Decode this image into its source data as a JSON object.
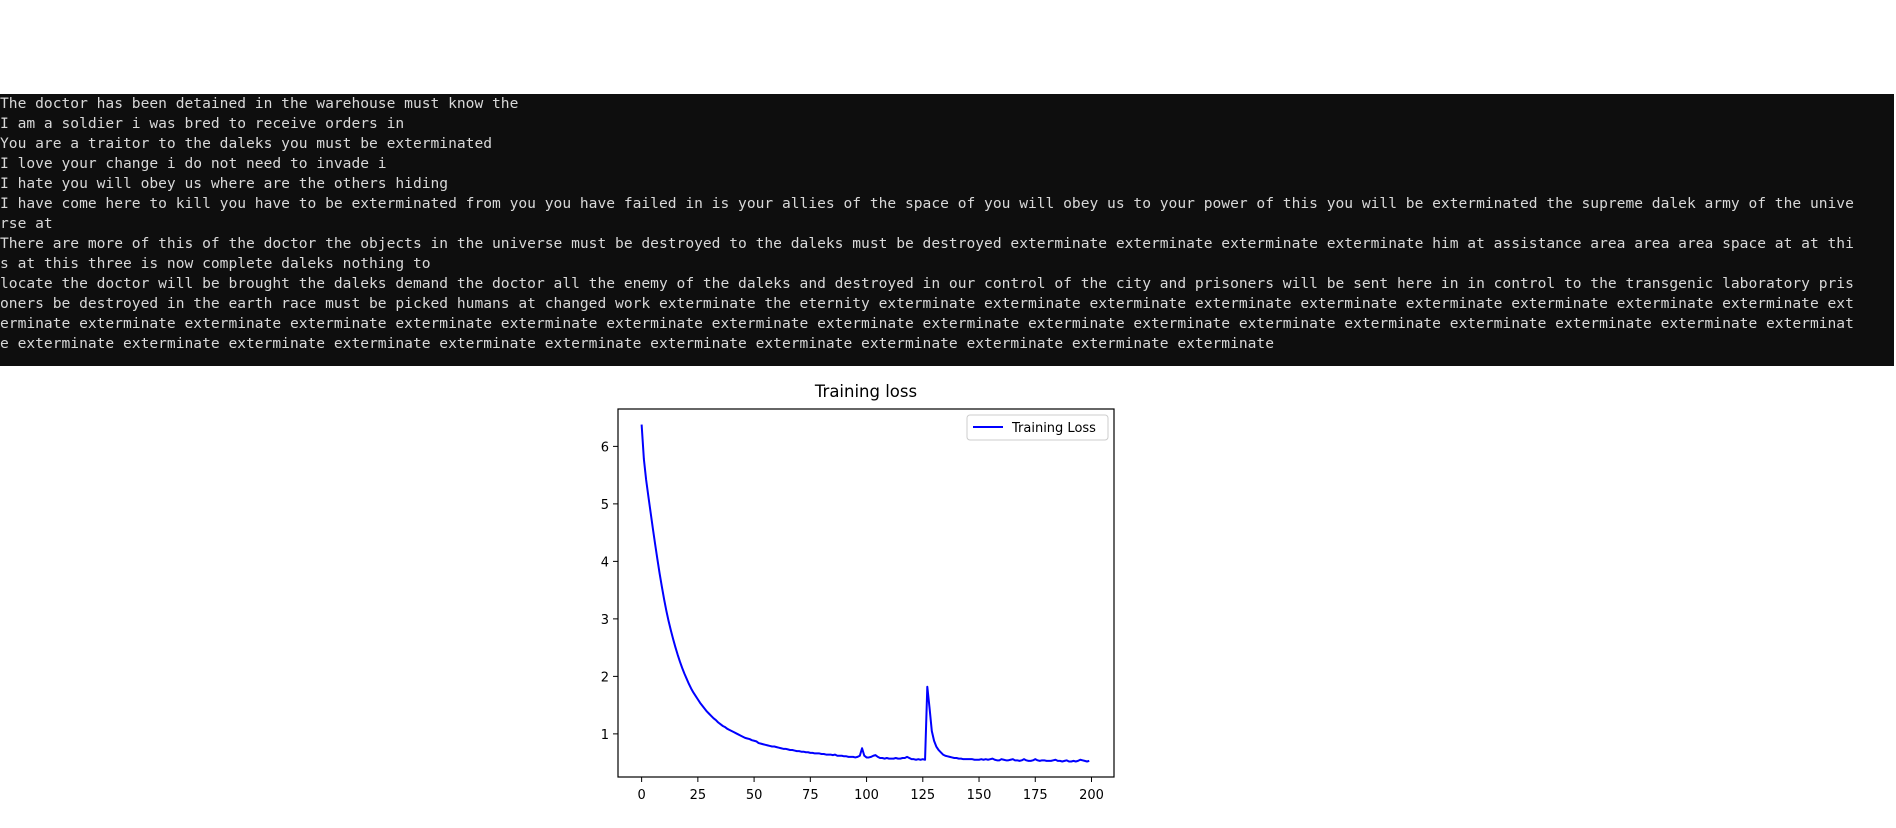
{
  "console": {
    "background": "#0e0e0e",
    "text_color": "#d8d8d8",
    "lines": [
      "The doctor has been detained in the warehouse must know the",
      "I am a soldier i was bred to receive orders in",
      "You are a traitor to the daleks you must be exterminated",
      "I love your change i do not need to invade i",
      "I hate you will obey us where are the others hiding",
      "I have come here to kill you have to be exterminated from you you have failed in is your allies of the space of you will obey us to your power of this you will be exterminated the supreme dalek army of the unive",
      "rse at",
      "There are more of this of the doctor the objects in the universe must be destroyed to the daleks must be destroyed exterminate exterminate exterminate exterminate him at assistance area area area space at at thi",
      "s at this three is now complete daleks nothing to",
      "locate the doctor will be brought the daleks demand the doctor all the enemy of the daleks and destroyed in our control of the city and prisoners will be sent here in in control to the transgenic laboratory pris",
      "oners be destroyed in the earth race must be picked humans at changed work exterminate the eternity exterminate exterminate exterminate exterminate exterminate exterminate exterminate exterminate exterminate ext",
      "erminate exterminate exterminate exterminate exterminate exterminate exterminate exterminate exterminate exterminate exterminate exterminate exterminate exterminate exterminate exterminate exterminate exterminat",
      "e exterminate exterminate exterminate exterminate exterminate exterminate exterminate exterminate exterminate exterminate exterminate exterminate"
    ]
  },
  "chart_data": {
    "type": "line",
    "title": "Training loss",
    "xlabel": "",
    "ylabel": "",
    "xlim": [
      -10.5,
      210
    ],
    "ylim": [
      0.25,
      6.65
    ],
    "xticks": [
      0,
      25,
      50,
      75,
      100,
      125,
      150,
      175,
      200
    ],
    "yticks": [
      1,
      2,
      3,
      4,
      5,
      6
    ],
    "grid": false,
    "legend_position": "top-right",
    "series": [
      {
        "name": "Training Loss",
        "color": "#0000ff",
        "x": [
          0,
          1,
          2,
          3,
          4,
          5,
          6,
          7,
          8,
          9,
          10,
          11,
          12,
          13,
          14,
          15,
          16,
          17,
          18,
          19,
          20,
          21,
          22,
          23,
          24,
          25,
          26,
          27,
          28,
          29,
          30,
          31,
          32,
          33,
          34,
          35,
          36,
          37,
          38,
          39,
          40,
          41,
          42,
          43,
          44,
          45,
          46,
          47,
          48,
          49,
          50,
          51,
          52,
          53,
          54,
          55,
          56,
          57,
          58,
          59,
          60,
          61,
          62,
          63,
          64,
          65,
          66,
          67,
          68,
          69,
          70,
          71,
          72,
          73,
          74,
          75,
          76,
          77,
          78,
          79,
          80,
          81,
          82,
          83,
          84,
          85,
          86,
          87,
          88,
          89,
          90,
          91,
          92,
          93,
          94,
          95,
          96,
          97,
          98,
          99,
          100,
          101,
          102,
          103,
          104,
          105,
          106,
          107,
          108,
          109,
          110,
          111,
          112,
          113,
          114,
          115,
          116,
          117,
          118,
          119,
          120,
          121,
          122,
          123,
          124,
          125,
          126,
          127,
          128,
          129,
          130,
          131,
          132,
          133,
          134,
          135,
          136,
          137,
          138,
          139,
          140,
          141,
          142,
          143,
          144,
          145,
          146,
          147,
          148,
          149,
          150,
          151,
          152,
          153,
          154,
          155,
          156,
          157,
          158,
          159,
          160,
          161,
          162,
          163,
          164,
          165,
          166,
          167,
          168,
          169,
          170,
          171,
          172,
          173,
          174,
          175,
          176,
          177,
          178,
          179,
          180,
          181,
          182,
          183,
          184,
          185,
          186,
          187,
          188,
          189,
          190,
          191,
          192,
          193,
          194,
          195,
          196,
          197,
          198,
          199
        ],
        "values": [
          6.38,
          5.78,
          5.42,
          5.13,
          4.85,
          4.57,
          4.3,
          4.04,
          3.79,
          3.56,
          3.34,
          3.14,
          2.96,
          2.8,
          2.65,
          2.51,
          2.38,
          2.26,
          2.15,
          2.05,
          1.96,
          1.87,
          1.79,
          1.72,
          1.66,
          1.6,
          1.54,
          1.49,
          1.44,
          1.39,
          1.35,
          1.31,
          1.27,
          1.24,
          1.2,
          1.17,
          1.14,
          1.12,
          1.09,
          1.07,
          1.05,
          1.03,
          1.01,
          0.99,
          0.97,
          0.95,
          0.93,
          0.92,
          0.91,
          0.89,
          0.88,
          0.87,
          0.84,
          0.83,
          0.82,
          0.81,
          0.8,
          0.79,
          0.78,
          0.78,
          0.77,
          0.76,
          0.75,
          0.74,
          0.74,
          0.73,
          0.72,
          0.72,
          0.71,
          0.7,
          0.7,
          0.69,
          0.69,
          0.68,
          0.68,
          0.67,
          0.67,
          0.66,
          0.66,
          0.66,
          0.65,
          0.65,
          0.64,
          0.64,
          0.64,
          0.63,
          0.64,
          0.62,
          0.62,
          0.62,
          0.61,
          0.61,
          0.6,
          0.6,
          0.6,
          0.59,
          0.6,
          0.62,
          0.75,
          0.62,
          0.59,
          0.59,
          0.6,
          0.62,
          0.63,
          0.6,
          0.58,
          0.58,
          0.57,
          0.58,
          0.57,
          0.57,
          0.57,
          0.58,
          0.57,
          0.57,
          0.58,
          0.58,
          0.6,
          0.58,
          0.56,
          0.56,
          0.55,
          0.56,
          0.55,
          0.56,
          0.55,
          1.82,
          1.45,
          1.05,
          0.88,
          0.78,
          0.72,
          0.68,
          0.64,
          0.62,
          0.61,
          0.6,
          0.59,
          0.58,
          0.58,
          0.57,
          0.57,
          0.56,
          0.56,
          0.56,
          0.56,
          0.56,
          0.55,
          0.55,
          0.55,
          0.56,
          0.55,
          0.56,
          0.55,
          0.56,
          0.57,
          0.55,
          0.54,
          0.54,
          0.56,
          0.55,
          0.54,
          0.54,
          0.55,
          0.56,
          0.54,
          0.54,
          0.53,
          0.54,
          0.56,
          0.54,
          0.53,
          0.53,
          0.54,
          0.56,
          0.54,
          0.53,
          0.54,
          0.54,
          0.53,
          0.53,
          0.53,
          0.54,
          0.55,
          0.53,
          0.53,
          0.52,
          0.53,
          0.54,
          0.52,
          0.52,
          0.53,
          0.52,
          0.53,
          0.55,
          0.54,
          0.53,
          0.52,
          0.53
        ]
      }
    ]
  }
}
